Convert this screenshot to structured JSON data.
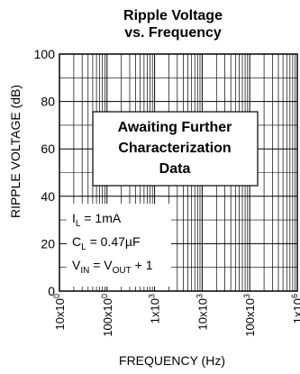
{
  "chart_data": {
    "type": "line",
    "title_lines": [
      "Ripple Voltage",
      "vs. Frequency"
    ],
    "xlabel": "FREQUENCY (Hz)",
    "ylabel": "RIPPLE VOLTAGE (dB)",
    "x_scale": "log",
    "xlim": [
      10,
      1000000
    ],
    "ylim": [
      0,
      100
    ],
    "y_ticks": [
      0,
      20,
      40,
      60,
      80,
      100
    ],
    "x_ticks": [
      {
        "value": 10,
        "base": "10x10",
        "exp": "0"
      },
      {
        "value": 100,
        "base": "100x10",
        "exp": "0"
      },
      {
        "value": 1000,
        "base": "1x10",
        "exp": "3"
      },
      {
        "value": 10000,
        "base": "10x10",
        "exp": "3"
      },
      {
        "value": 100000,
        "base": "100x10",
        "exp": "3"
      },
      {
        "value": 1000000,
        "base": "1x10",
        "exp": "6"
      }
    ],
    "grid": true,
    "series": [],
    "annotation": [
      "Awaiting Further",
      "Characterization",
      "Data"
    ],
    "conditions": [
      [
        {
          "t": "I"
        },
        {
          "t": "L",
          "sub": true
        },
        {
          "t": " = 1mA"
        }
      ],
      [
        {
          "t": "C"
        },
        {
          "t": "L",
          "sub": true
        },
        {
          "t": " = 0.47µF"
        }
      ],
      [
        {
          "t": "V"
        },
        {
          "t": "IN",
          "sub": true
        },
        {
          "t": " = V"
        },
        {
          "t": "OUT",
          "sub": true
        },
        {
          "t": " + 1"
        }
      ]
    ]
  }
}
